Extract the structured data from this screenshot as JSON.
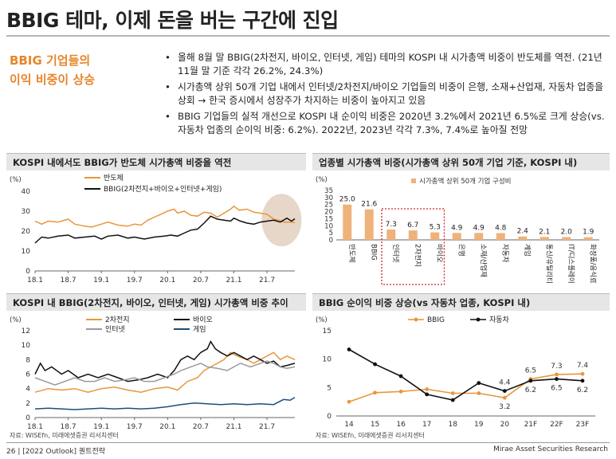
{
  "title": "BBIG 테마, 이제 돈을 버는 구간에 진입",
  "side_heading": [
    "BBIG 기업들의",
    "이익 비중이 상승"
  ],
  "bullets": [
    "올해 8월 말 BBIG(2차전지, 바이오, 인터넷, 게임) 테마의 KOSPI 내 시가총액 비중이 반도체를 역전. (21년 11월 말 기준 각각 26.2%, 24.3%)",
    "시가총액 상위 50개 기업 내에서 인터넷/2차전지/바이오 기업들의 비중이 은행, 소재+산업재, 자동차 업종을 상회 → 한국 증시에서 성장주가 차지하는 비중이 높아지고 있음",
    "BBIG 기업들의 실적 개선으로 KOSPI 내 순이익 비중은 2020년 3.2%에서 2021년 6.5%로 크게 상승(vs. 자동차 업종의 순이익 비중: 6.2%). 2022년, 2023년 각각 7.3%, 7.4%로 높아질 전망"
  ],
  "panels": {
    "p1": "KOSPI 내에서도 BBIG가 반도체 시가총액 비중을 역전",
    "p2": "업종별 시가총액 비중(시가총액 상위 50개 기업 기준, KOSPI 내)",
    "p3": "KOSPI 내 BBIG(2차전지, 바이오, 인터넷, 게임) 시가총액 비중 추이",
    "p4": "BBIG 순이익 비중 상승(vs 자동차 업종, KOSPI 내)"
  },
  "source_text": "자료: WISEfn, 미래에셋증권 리서치센터",
  "footer": {
    "left": "26 | [2022 Outlook] 퀀트전략",
    "right": "Mirae Asset Securities Research"
  },
  "colors": {
    "orange": "#e8963c",
    "black": "#111111",
    "gray": "#9a9a9a",
    "navy": "#1f4e79",
    "bar": "#efb27a"
  },
  "chart_data": [
    {
      "id": "c1",
      "type": "line",
      "unit": "(%)",
      "title": "KOSPI 내에서도 BBIG가 반도체 시가총액 비중을 역전",
      "ylim": [
        0,
        40
      ],
      "yticks": [
        0,
        10,
        20,
        30,
        40
      ],
      "xlim": [
        2018.0,
        2021.92
      ],
      "xticks": [
        {
          "label": "18.1",
          "x": 2018.0
        },
        {
          "label": "18.7",
          "x": 2018.5
        },
        {
          "label": "19.1",
          "x": 2019.0
        },
        {
          "label": "19.7",
          "x": 2019.5
        },
        {
          "label": "20.1",
          "x": 2020.0
        },
        {
          "label": "20.7",
          "x": 2020.5
        },
        {
          "label": "21.1",
          "x": 2021.0
        },
        {
          "label": "21.7",
          "x": 2021.5
        }
      ],
      "series": [
        {
          "name": "반도체",
          "color": "#e8963c",
          "points": [
            [
              2018.0,
              25
            ],
            [
              2018.1,
              23.5
            ],
            [
              2018.2,
              25
            ],
            [
              2018.35,
              24.5
            ],
            [
              2018.5,
              26
            ],
            [
              2018.6,
              23.5
            ],
            [
              2018.75,
              22.5
            ],
            [
              2018.85,
              22
            ],
            [
              2019.0,
              23.5
            ],
            [
              2019.1,
              24.5
            ],
            [
              2019.25,
              23
            ],
            [
              2019.4,
              22.5
            ],
            [
              2019.5,
              23.5
            ],
            [
              2019.6,
              23
            ],
            [
              2019.7,
              25.5
            ],
            [
              2019.8,
              27
            ],
            [
              2019.9,
              28.5
            ],
            [
              2020.0,
              30
            ],
            [
              2020.1,
              31
            ],
            [
              2020.15,
              29
            ],
            [
              2020.25,
              30
            ],
            [
              2020.35,
              28
            ],
            [
              2020.45,
              27.5
            ],
            [
              2020.55,
              29.5
            ],
            [
              2020.65,
              29
            ],
            [
              2020.75,
              27
            ],
            [
              2020.85,
              29
            ],
            [
              2020.95,
              31
            ],
            [
              2021.0,
              32.5
            ],
            [
              2021.08,
              30.5
            ],
            [
              2021.2,
              31
            ],
            [
              2021.3,
              29.5
            ],
            [
              2021.4,
              29
            ],
            [
              2021.5,
              28.5
            ],
            [
              2021.6,
              26
            ],
            [
              2021.68,
              25.5
            ],
            [
              2021.75,
              24.5
            ],
            [
              2021.85,
              24.5
            ],
            [
              2021.92,
              24.3
            ]
          ]
        },
        {
          "name": "BBIG(2차전지+바이오+인터넷+게임)",
          "color": "#111111",
          "points": [
            [
              2018.0,
              14
            ],
            [
              2018.1,
              17
            ],
            [
              2018.2,
              16.5
            ],
            [
              2018.35,
              17.5
            ],
            [
              2018.5,
              18
            ],
            [
              2018.6,
              16.5
            ],
            [
              2018.75,
              17
            ],
            [
              2018.9,
              17.5
            ],
            [
              2019.0,
              16
            ],
            [
              2019.1,
              17.5
            ],
            [
              2019.25,
              18
            ],
            [
              2019.4,
              16.5
            ],
            [
              2019.5,
              17
            ],
            [
              2019.65,
              16
            ],
            [
              2019.8,
              17
            ],
            [
              2019.95,
              17.5
            ],
            [
              2020.05,
              18
            ],
            [
              2020.15,
              17.5
            ],
            [
              2020.25,
              19
            ],
            [
              2020.35,
              20.5
            ],
            [
              2020.45,
              21
            ],
            [
              2020.55,
              24
            ],
            [
              2020.65,
              27.5
            ],
            [
              2020.75,
              26
            ],
            [
              2020.85,
              25.5
            ],
            [
              2020.95,
              25
            ],
            [
              2021.0,
              26.5
            ],
            [
              2021.1,
              25
            ],
            [
              2021.2,
              24
            ],
            [
              2021.3,
              23.5
            ],
            [
              2021.4,
              24.5
            ],
            [
              2021.5,
              25
            ],
            [
              2021.6,
              25.5
            ],
            [
              2021.7,
              24.5
            ],
            [
              2021.8,
              26.5
            ],
            [
              2021.87,
              25
            ],
            [
              2021.92,
              26.2
            ]
          ]
        }
      ]
    },
    {
      "id": "c2",
      "type": "bar",
      "unit": "(%)",
      "title": "업종별 시가총액 비중(시가총액 상위 50개 기업 기준, KOSPI 내)",
      "legend": "시가총액 상위 50개 기업 구성비",
      "ylim": [
        0,
        35
      ],
      "yticks": [
        0,
        5,
        10,
        15,
        20,
        25,
        30,
        35
      ],
      "categories": [
        "반도체",
        "BBIG",
        "인터넷",
        "2차전지",
        "바이오",
        "은행",
        "소재/산업재",
        "자동차",
        "게임",
        "통신/유틸리티",
        "IT/디스플레이",
        "화장품/음식료"
      ],
      "values": [
        25.0,
        21.6,
        7.3,
        6.7,
        5.3,
        4.9,
        4.9,
        4.8,
        2.4,
        2.1,
        2.0,
        1.9
      ],
      "value_labels": [
        "25.0",
        "21.6",
        "7.3",
        "6.7",
        "5.3",
        "4.9",
        "4.9",
        "4.8",
        "2.4",
        "2.1",
        "2.0",
        "1.9"
      ],
      "highlight": [
        "인터넷",
        "2차전지",
        "바이오"
      ]
    },
    {
      "id": "c3",
      "type": "line",
      "unit": "(%)",
      "title": "KOSPI 내 BBIG(2차전지, 바이오, 인터넷, 게임) 시가총액 비중 추이",
      "ylim": [
        0,
        12
      ],
      "yticks": [
        0,
        2,
        4,
        6,
        8,
        10,
        12
      ],
      "xlim": [
        2018.0,
        2021.92
      ],
      "xticks": [
        {
          "label": "18.1",
          "x": 2018.0
        },
        {
          "label": "18.7",
          "x": 2018.5
        },
        {
          "label": "19.1",
          "x": 2019.0
        },
        {
          "label": "19.7",
          "x": 2019.5
        },
        {
          "label": "20.1",
          "x": 2020.0
        },
        {
          "label": "20.7",
          "x": 2020.5
        },
        {
          "label": "21.1",
          "x": 2021.0
        },
        {
          "label": "21.7",
          "x": 2021.5
        }
      ],
      "series": [
        {
          "name": "2차전지",
          "color": "#e8963c",
          "points": [
            [
              2018.0,
              3.5
            ],
            [
              2018.2,
              4
            ],
            [
              2018.4,
              3.8
            ],
            [
              2018.6,
              4
            ],
            [
              2018.8,
              3.5
            ],
            [
              2019.0,
              4
            ],
            [
              2019.2,
              4.2
            ],
            [
              2019.4,
              3.8
            ],
            [
              2019.6,
              3.5
            ],
            [
              2019.8,
              4
            ],
            [
              2020.0,
              4.2
            ],
            [
              2020.15,
              3.8
            ],
            [
              2020.3,
              5
            ],
            [
              2020.45,
              5.5
            ],
            [
              2020.55,
              6.5
            ],
            [
              2020.65,
              7
            ],
            [
              2020.75,
              7.5
            ],
            [
              2020.85,
              8
            ],
            [
              2020.95,
              9
            ],
            [
              2021.05,
              8.5
            ],
            [
              2021.2,
              8
            ],
            [
              2021.3,
              7.5
            ],
            [
              2021.4,
              8
            ],
            [
              2021.5,
              8.5
            ],
            [
              2021.6,
              9
            ],
            [
              2021.7,
              8
            ],
            [
              2021.8,
              8.5
            ],
            [
              2021.92,
              8
            ]
          ]
        },
        {
          "name": "바이오",
          "color": "#111111",
          "points": [
            [
              2018.0,
              6
            ],
            [
              2018.08,
              7.5
            ],
            [
              2018.15,
              6.5
            ],
            [
              2018.25,
              7
            ],
            [
              2018.4,
              6
            ],
            [
              2018.5,
              6.5
            ],
            [
              2018.65,
              5.5
            ],
            [
              2018.8,
              6
            ],
            [
              2018.95,
              5.5
            ],
            [
              2019.1,
              6
            ],
            [
              2019.25,
              5.5
            ],
            [
              2019.4,
              5
            ],
            [
              2019.55,
              5.2
            ],
            [
              2019.7,
              5.5
            ],
            [
              2019.85,
              6
            ],
            [
              2020.0,
              5.5
            ],
            [
              2020.1,
              6.5
            ],
            [
              2020.2,
              8
            ],
            [
              2020.3,
              8.5
            ],
            [
              2020.4,
              8
            ],
            [
              2020.5,
              9
            ],
            [
              2020.6,
              9.5
            ],
            [
              2020.65,
              10.5
            ],
            [
              2020.72,
              9.5
            ],
            [
              2020.8,
              9
            ],
            [
              2020.9,
              8.5
            ],
            [
              2021.0,
              9
            ],
            [
              2021.1,
              8.5
            ],
            [
              2021.2,
              8
            ],
            [
              2021.3,
              8.5
            ],
            [
              2021.4,
              8
            ],
            [
              2021.5,
              7.5
            ],
            [
              2021.6,
              7.8
            ],
            [
              2021.7,
              7
            ],
            [
              2021.8,
              7.2
            ],
            [
              2021.92,
              7.5
            ]
          ]
        },
        {
          "name": "인터넷",
          "color": "#9a9a9a",
          "points": [
            [
              2018.0,
              5.5
            ],
            [
              2018.15,
              5
            ],
            [
              2018.3,
              4.5
            ],
            [
              2018.45,
              5
            ],
            [
              2018.6,
              5.5
            ],
            [
              2018.75,
              5
            ],
            [
              2018.9,
              5
            ],
            [
              2019.05,
              5.5
            ],
            [
              2019.2,
              5
            ],
            [
              2019.35,
              5.2
            ],
            [
              2019.5,
              5.5
            ],
            [
              2019.65,
              5
            ],
            [
              2019.8,
              5
            ],
            [
              2019.95,
              5.5
            ],
            [
              2020.1,
              6
            ],
            [
              2020.2,
              6.5
            ],
            [
              2020.35,
              7
            ],
            [
              2020.5,
              7.5
            ],
            [
              2020.6,
              7
            ],
            [
              2020.75,
              6.8
            ],
            [
              2020.9,
              6.5
            ],
            [
              2021.0,
              7
            ],
            [
              2021.1,
              7.5
            ],
            [
              2021.25,
              7
            ],
            [
              2021.4,
              7.5
            ],
            [
              2021.5,
              7.8
            ],
            [
              2021.6,
              7.5
            ],
            [
              2021.7,
              7
            ],
            [
              2021.8,
              6.8
            ],
            [
              2021.92,
              7
            ]
          ]
        },
        {
          "name": "게임",
          "color": "#1f4e79",
          "points": [
            [
              2018.0,
              1.2
            ],
            [
              2018.2,
              1.3
            ],
            [
              2018.4,
              1.2
            ],
            [
              2018.6,
              1.1
            ],
            [
              2018.8,
              1.2
            ],
            [
              2019.0,
              1.3
            ],
            [
              2019.2,
              1.2
            ],
            [
              2019.4,
              1.3
            ],
            [
              2019.6,
              1.2
            ],
            [
              2019.8,
              1.3
            ],
            [
              2020.0,
              1.5
            ],
            [
              2020.2,
              1.8
            ],
            [
              2020.4,
              2
            ],
            [
              2020.6,
              1.9
            ],
            [
              2020.8,
              1.8
            ],
            [
              2021.0,
              1.9
            ],
            [
              2021.2,
              1.8
            ],
            [
              2021.4,
              1.9
            ],
            [
              2021.6,
              1.8
            ],
            [
              2021.75,
              2.5
            ],
            [
              2021.85,
              2.4
            ],
            [
              2021.92,
              2.8
            ]
          ]
        }
      ]
    },
    {
      "id": "c4",
      "type": "line",
      "unit": "(%)",
      "title": "BBIG 순이익 비중 상승(vs 자동차 업종, KOSPI 내)",
      "ylim": [
        0,
        15
      ],
      "yticks": [
        0,
        5,
        10,
        15
      ],
      "categories": [
        "14",
        "15",
        "16",
        "17",
        "18",
        "19",
        "20",
        "21F",
        "22F",
        "23F"
      ],
      "series": [
        {
          "name": "BBIG",
          "color": "#e8963c",
          "values": [
            2.5,
            4.1,
            4.3,
            4.7,
            4.0,
            4.0,
            3.2,
            6.5,
            7.3,
            7.4
          ]
        },
        {
          "name": "자동차",
          "color": "#111111",
          "values": [
            11.7,
            9.1,
            7.0,
            3.8,
            2.8,
            5.8,
            4.4,
            6.2,
            6.5,
            6.2
          ]
        }
      ],
      "labels": [
        {
          "series": "BBIG",
          "index": 6,
          "text": "3.2",
          "pos": "below"
        },
        {
          "series": "BBIG",
          "index": 7,
          "text": "6.5",
          "pos": "above"
        },
        {
          "series": "BBIG",
          "index": 8,
          "text": "7.3",
          "pos": "above"
        },
        {
          "series": "BBIG",
          "index": 9,
          "text": "7.4",
          "pos": "above"
        },
        {
          "series": "자동차",
          "index": 6,
          "text": "4.4",
          "pos": "above"
        },
        {
          "series": "자동차",
          "index": 7,
          "text": "6.2",
          "pos": "below"
        },
        {
          "series": "자동차",
          "index": 8,
          "text": "6.5",
          "pos": "below"
        },
        {
          "series": "자동차",
          "index": 9,
          "text": "6.2",
          "pos": "below"
        }
      ]
    }
  ]
}
